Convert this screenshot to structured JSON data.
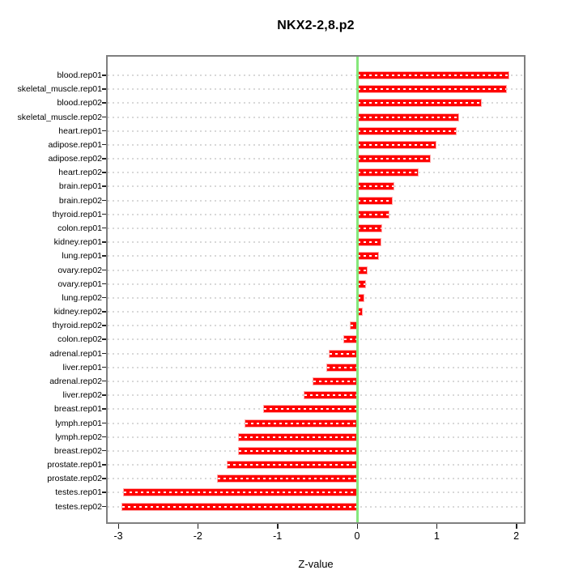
{
  "title": "NKX2-2,8.p2",
  "chart_data": {
    "type": "bar",
    "orientation": "horizontal",
    "title": "NKX2-2,8.p2",
    "xlabel": "Z-value",
    "ylabel": "",
    "xlim": [
      -3.13,
      2.13
    ],
    "xticks": [
      -3,
      -2,
      -1,
      0,
      1,
      2
    ],
    "xtick_labels": [
      "-3",
      "-2",
      "-1",
      "0",
      "1",
      "2"
    ],
    "grid": "dotted horizontal line per category",
    "legend": "none",
    "zero_line": 0,
    "categories": [
      "blood.rep01",
      "skeletal_muscle.rep01",
      "blood.rep02",
      "skeletal_muscle.rep02",
      "heart.rep01",
      "adipose.rep01",
      "adipose.rep02",
      "heart.rep02",
      "brain.rep01",
      "brain.rep02",
      "thyroid.rep01",
      "colon.rep01",
      "kidney.rep01",
      "lung.rep01",
      "ovary.rep02",
      "ovary.rep01",
      "lung.rep02",
      "kidney.rep02",
      "thyroid.rep02",
      "colon.rep02",
      "adrenal.rep01",
      "liver.rep01",
      "adrenal.rep02",
      "liver.rep02",
      "breast.rep01",
      "lymph.rep01",
      "lymph.rep02",
      "breast.rep02",
      "prostate.rep01",
      "prostate.rep02",
      "testes.rep01",
      "testes.rep02"
    ],
    "values": [
      1.91,
      1.88,
      1.57,
      1.28,
      1.25,
      1.0,
      0.93,
      0.77,
      0.47,
      0.45,
      0.41,
      0.32,
      0.31,
      0.27,
      0.13,
      0.11,
      0.09,
      0.07,
      -0.09,
      -0.17,
      -0.36,
      -0.39,
      -0.56,
      -0.67,
      -1.18,
      -1.41,
      -1.5,
      -1.49,
      -1.64,
      -1.76,
      -2.94,
      -2.96
    ],
    "colors": {
      "bar": "#FF0000",
      "bar_outline": "#FFAAAA",
      "bar_center_dash": "#FFFFFF",
      "zero_line": "#86E87C",
      "grid_dots": "#D8D8D8",
      "box_border": "#7F7F7F",
      "text": "#000000",
      "background": "#FFFFFF"
    }
  }
}
